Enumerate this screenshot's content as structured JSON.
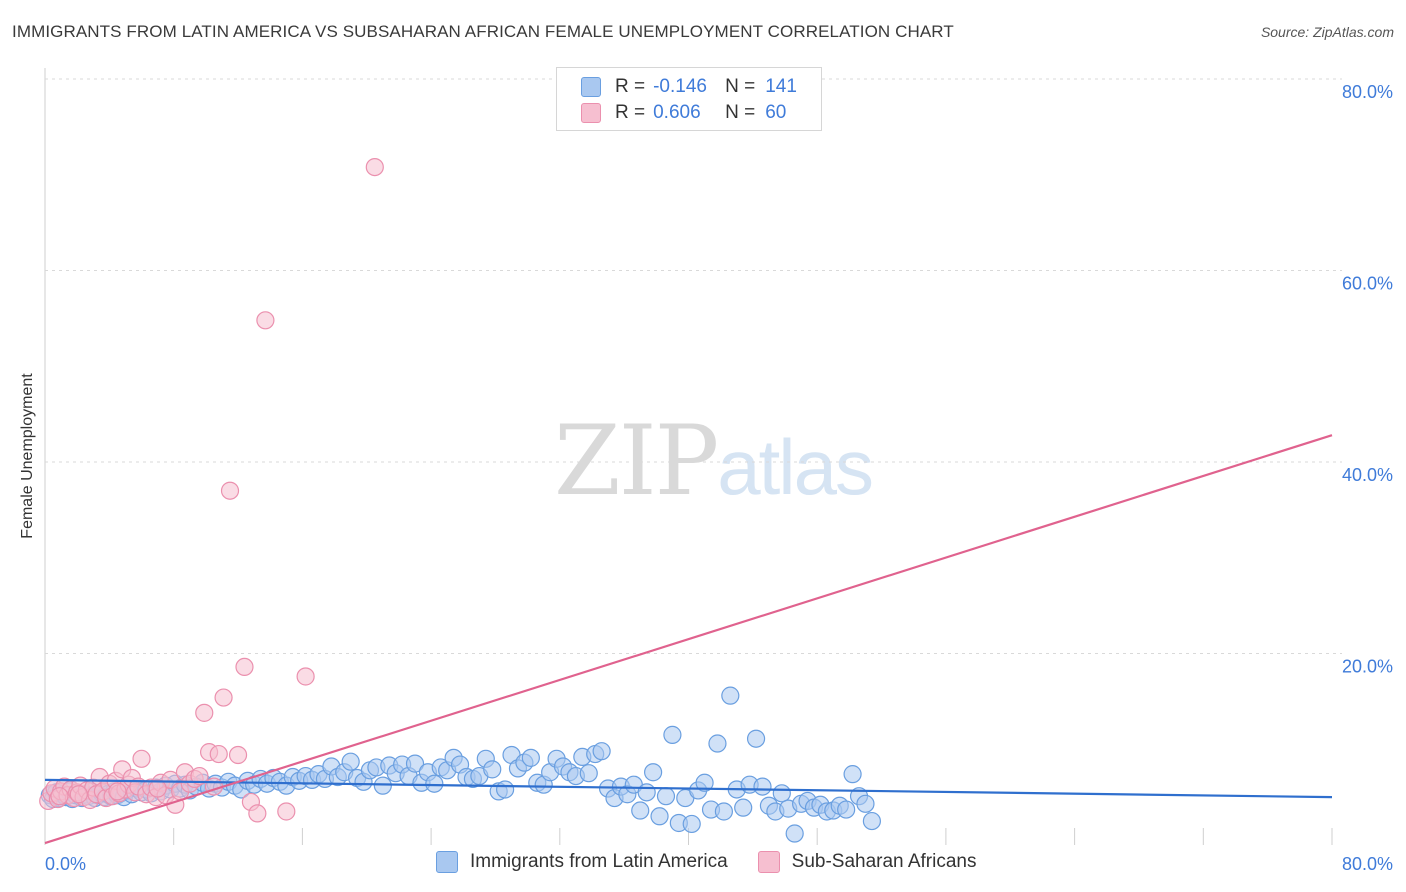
{
  "header": {
    "title": "IMMIGRANTS FROM LATIN AMERICA VS SUBSAHARAN AFRICAN FEMALE UNEMPLOYMENT CORRELATION CHART",
    "source": "Source: ZipAtlas.com"
  },
  "watermark": {
    "zip": "ZIP",
    "atlas": "atlas"
  },
  "legend": {
    "r_label": "R =",
    "n_label": "N =",
    "series1": {
      "r": "-0.146",
      "n": "141"
    },
    "series2": {
      "r": "0.606",
      "n": "60"
    }
  },
  "bottom_legend": {
    "series1": "Immigrants from Latin America",
    "series2": "Sub-Saharan Africans"
  },
  "colors": {
    "series1_fill": "#a9c8f0",
    "series1_stroke": "#6a9fe0",
    "series1_line": "#2f6fce",
    "series2_fill": "#f6bfd0",
    "series2_stroke": "#eb90ae",
    "series2_line": "#e0628e",
    "tick_label": "#3f7bd9",
    "grid": "#d9d9d9"
  },
  "chart_data": {
    "type": "scatter",
    "title": "IMMIGRANTS FROM LATIN AMERICA VS SUBSAHARAN AFRICAN FEMALE UNEMPLOYMENT CORRELATION CHART",
    "xlabel": "",
    "ylabel": "Female Unemployment",
    "xlim": [
      0,
      80
    ],
    "ylim": [
      0,
      80
    ],
    "x_tick_labels": [
      "0.0%",
      "80.0%"
    ],
    "y_ticks": [
      20,
      40,
      60,
      80
    ],
    "y_tick_labels": [
      "20.0%",
      "40.0%",
      "60.0%",
      "80.0%"
    ],
    "grid": true,
    "legend_position": "top-center",
    "series": [
      {
        "name": "Immigrants from Latin America",
        "r": -0.146,
        "n": 141,
        "trend": {
          "x": [
            0,
            80
          ],
          "y": [
            6.8,
            5.0
          ]
        },
        "points": [
          [
            0.3,
            5.2
          ],
          [
            0.5,
            4.8
          ],
          [
            0.7,
            5.5
          ],
          [
            0.9,
            4.9
          ],
          [
            1.1,
            5.3
          ],
          [
            1.3,
            5.0
          ],
          [
            1.5,
            5.6
          ],
          [
            1.7,
            4.8
          ],
          [
            1.9,
            5.2
          ],
          [
            2.1,
            5.4
          ],
          [
            2.3,
            4.9
          ],
          [
            2.5,
            5.3
          ],
          [
            2.7,
            5.1
          ],
          [
            2.9,
            5.6
          ],
          [
            3.1,
            4.9
          ],
          [
            3.3,
            5.2
          ],
          [
            3.5,
            5.5
          ],
          [
            3.7,
            5.0
          ],
          [
            3.9,
            5.3
          ],
          [
            4.1,
            5.1
          ],
          [
            4.3,
            5.6
          ],
          [
            4.5,
            5.2
          ],
          [
            4.7,
            5.4
          ],
          [
            4.9,
            5.0
          ],
          [
            5.1,
            5.7
          ],
          [
            5.4,
            5.3
          ],
          [
            5.7,
            5.9
          ],
          [
            6.0,
            5.5
          ],
          [
            6.3,
            5.8
          ],
          [
            6.6,
            5.4
          ],
          [
            6.9,
            6.0
          ],
          [
            7.2,
            5.6
          ],
          [
            7.5,
            6.2
          ],
          [
            7.8,
            5.8
          ],
          [
            8.1,
            6.4
          ],
          [
            8.4,
            5.9
          ],
          [
            8.7,
            6.3
          ],
          [
            9.0,
            5.7
          ],
          [
            9.4,
            6.1
          ],
          [
            9.8,
            6.5
          ],
          [
            10.2,
            5.9
          ],
          [
            10.6,
            6.4
          ],
          [
            11.0,
            6.0
          ],
          [
            11.4,
            6.6
          ],
          [
            11.8,
            6.2
          ],
          [
            12.2,
            5.8
          ],
          [
            12.6,
            6.7
          ],
          [
            13.0,
            6.3
          ],
          [
            13.4,
            6.9
          ],
          [
            13.8,
            6.4
          ],
          [
            14.2,
            7.0
          ],
          [
            14.6,
            6.6
          ],
          [
            15.0,
            6.2
          ],
          [
            15.4,
            7.1
          ],
          [
            15.8,
            6.7
          ],
          [
            16.2,
            7.2
          ],
          [
            16.6,
            6.8
          ],
          [
            17.0,
            7.4
          ],
          [
            17.4,
            6.9
          ],
          [
            17.8,
            8.2
          ],
          [
            18.2,
            7.1
          ],
          [
            18.6,
            7.6
          ],
          [
            19.0,
            8.7
          ],
          [
            19.4,
            7.0
          ],
          [
            19.8,
            6.6
          ],
          [
            20.2,
            7.8
          ],
          [
            20.6,
            8.1
          ],
          [
            21.0,
            6.2
          ],
          [
            21.4,
            8.3
          ],
          [
            21.8,
            7.5
          ],
          [
            22.2,
            8.4
          ],
          [
            22.6,
            7.2
          ],
          [
            23.0,
            8.5
          ],
          [
            23.4,
            6.5
          ],
          [
            23.8,
            7.6
          ],
          [
            24.2,
            6.4
          ],
          [
            24.6,
            8.1
          ],
          [
            25.0,
            7.8
          ],
          [
            25.4,
            9.1
          ],
          [
            25.8,
            8.4
          ],
          [
            26.2,
            7.1
          ],
          [
            26.6,
            6.9
          ],
          [
            27.0,
            7.2
          ],
          [
            27.4,
            9.0
          ],
          [
            27.8,
            7.9
          ],
          [
            28.2,
            5.6
          ],
          [
            28.6,
            5.8
          ],
          [
            29.0,
            9.4
          ],
          [
            29.4,
            8.0
          ],
          [
            29.8,
            8.6
          ],
          [
            30.2,
            9.1
          ],
          [
            30.6,
            6.5
          ],
          [
            31.0,
            6.3
          ],
          [
            31.4,
            7.6
          ],
          [
            31.8,
            9.0
          ],
          [
            32.2,
            8.2
          ],
          [
            32.6,
            7.6
          ],
          [
            33.0,
            7.2
          ],
          [
            33.4,
            9.2
          ],
          [
            33.8,
            7.5
          ],
          [
            34.2,
            9.5
          ],
          [
            34.6,
            9.8
          ],
          [
            35.0,
            5.9
          ],
          [
            35.4,
            4.9
          ],
          [
            35.8,
            6.1
          ],
          [
            36.2,
            5.3
          ],
          [
            36.6,
            6.3
          ],
          [
            37.0,
            3.6
          ],
          [
            37.4,
            5.5
          ],
          [
            37.8,
            7.6
          ],
          [
            38.2,
            3.0
          ],
          [
            38.6,
            5.1
          ],
          [
            39.0,
            11.5
          ],
          [
            39.4,
            2.3
          ],
          [
            39.8,
            4.9
          ],
          [
            40.2,
            2.2
          ],
          [
            40.6,
            5.7
          ],
          [
            41.0,
            6.5
          ],
          [
            41.4,
            3.7
          ],
          [
            41.8,
            10.6
          ],
          [
            42.2,
            3.5
          ],
          [
            42.6,
            15.6
          ],
          [
            43.0,
            5.8
          ],
          [
            43.4,
            3.9
          ],
          [
            43.8,
            6.3
          ],
          [
            44.2,
            11.1
          ],
          [
            44.6,
            6.1
          ],
          [
            45.0,
            4.1
          ],
          [
            45.4,
            3.5
          ],
          [
            45.8,
            5.4
          ],
          [
            46.2,
            3.8
          ],
          [
            46.6,
            1.2
          ],
          [
            47.0,
            4.3
          ],
          [
            47.4,
            4.6
          ],
          [
            47.8,
            3.9
          ],
          [
            48.2,
            4.2
          ],
          [
            48.6,
            3.5
          ],
          [
            49.0,
            3.6
          ],
          [
            49.4,
            4.1
          ],
          [
            49.8,
            3.7
          ],
          [
            50.2,
            7.4
          ],
          [
            50.6,
            5.1
          ],
          [
            51.0,
            4.3
          ],
          [
            51.4,
            2.5
          ]
        ]
      },
      {
        "name": "Sub-Saharan Africans",
        "r": 0.606,
        "n": 60,
        "trend": {
          "x": [
            0,
            80
          ],
          "y": [
            0.2,
            42.8
          ]
        },
        "points": [
          [
            0.2,
            4.6
          ],
          [
            0.4,
            5.4
          ],
          [
            0.6,
            5.9
          ],
          [
            0.8,
            4.8
          ],
          [
            1.0,
            5.6
          ],
          [
            1.2,
            6.1
          ],
          [
            1.4,
            5.2
          ],
          [
            1.6,
            5.8
          ],
          [
            1.8,
            4.9
          ],
          [
            2.0,
            5.5
          ],
          [
            2.2,
            6.2
          ],
          [
            2.4,
            5.0
          ],
          [
            2.6,
            5.7
          ],
          [
            2.8,
            4.7
          ],
          [
            3.0,
            6.0
          ],
          [
            3.2,
            5.3
          ],
          [
            3.4,
            7.1
          ],
          [
            3.6,
            5.6
          ],
          [
            3.8,
            4.9
          ],
          [
            4.0,
            6.4
          ],
          [
            4.2,
            5.1
          ],
          [
            4.4,
            6.7
          ],
          [
            4.6,
            5.4
          ],
          [
            4.8,
            7.9
          ],
          [
            5.0,
            5.8
          ],
          [
            5.2,
            6.3
          ],
          [
            5.4,
            7.0
          ],
          [
            5.6,
            5.5
          ],
          [
            5.8,
            6.1
          ],
          [
            6.0,
            9.0
          ],
          [
            6.3,
            5.3
          ],
          [
            6.6,
            6.0
          ],
          [
            6.9,
            5.0
          ],
          [
            7.2,
            6.5
          ],
          [
            7.5,
            5.2
          ],
          [
            7.8,
            6.8
          ],
          [
            8.1,
            4.2
          ],
          [
            8.4,
            5.6
          ],
          [
            8.7,
            7.6
          ],
          [
            9.0,
            6.4
          ],
          [
            9.3,
            6.9
          ],
          [
            9.6,
            7.2
          ],
          [
            9.9,
            13.8
          ],
          [
            10.2,
            9.7
          ],
          [
            10.5,
            6.1
          ],
          [
            10.8,
            9.5
          ],
          [
            11.1,
            15.4
          ],
          [
            11.5,
            37.0
          ],
          [
            12.0,
            9.4
          ],
          [
            12.4,
            18.6
          ],
          [
            12.8,
            4.5
          ],
          [
            13.2,
            3.3
          ],
          [
            13.7,
            54.8
          ],
          [
            15.0,
            3.5
          ],
          [
            16.2,
            17.6
          ],
          [
            20.5,
            70.8
          ],
          [
            4.5,
            5.6
          ],
          [
            7.0,
            5.9
          ],
          [
            2.1,
            5.3
          ],
          [
            0.9,
            5.1
          ]
        ]
      }
    ]
  }
}
